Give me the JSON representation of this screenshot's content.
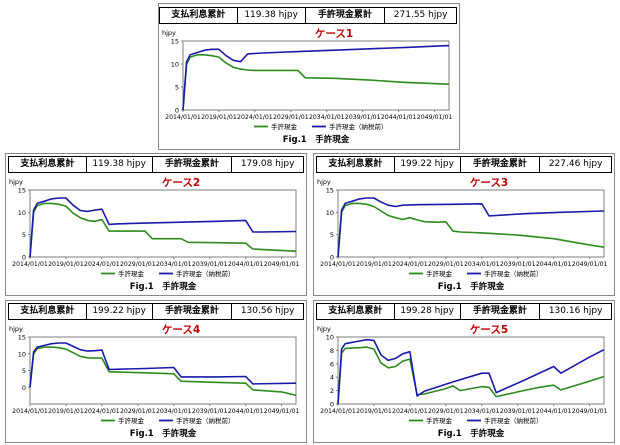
{
  "panels": [
    {
      "stats": {
        "label1": "支払利息累計",
        "value1": "119.38 hjpy",
        "label2": "手許現金累計",
        "value2": "271.55 hjpy"
      },
      "chart_data": {
        "type": "line",
        "title": "ケース1",
        "ylabel": "hjpy",
        "ylim": [
          0,
          15
        ],
        "yticks": [
          0,
          5,
          10,
          15
        ],
        "xlim": [
          2014,
          2051
        ],
        "xtick_labels": [
          "2014/01/01",
          "2019/01/01",
          "2024/01/01",
          "2029/01/01",
          "2034/01/01",
          "2039/01/01",
          "2044/01/01",
          "2049/01/01"
        ],
        "series": [
          {
            "name": "手許現金",
            "color": "#2e8b1e",
            "x": [
              2014,
              2014.5,
              2015,
              2016,
              2017,
              2018,
              2019,
              2020,
              2021,
              2022,
              2023,
              2024,
              2025,
              2026,
              2027,
              2028,
              2029,
              2030,
              2031,
              2035,
              2040,
              2045,
              2051
            ],
            "y": [
              0,
              10,
              11.5,
              12,
              12,
              11.8,
              11.5,
              10.2,
              9.3,
              8.9,
              8.7,
              8.6,
              8.6,
              8.6,
              8.6,
              8.6,
              8.6,
              8.6,
              7.0,
              6.9,
              6.5,
              6.0,
              5.6
            ]
          },
          {
            "name": "手許現金（納税前）",
            "color": "#1a1aaa",
            "x": [
              2014,
              2014.5,
              2015,
              2016,
              2017,
              2018,
              2019,
              2020,
              2021,
              2022,
              2023,
              2025,
              2030,
              2035,
              2040,
              2045,
              2051
            ],
            "y": [
              0,
              10.5,
              12,
              12.5,
              13,
              13.2,
              13.2,
              11.8,
              10.8,
              10.5,
              12.2,
              12.4,
              12.7,
              13.0,
              13.3,
              13.6,
              14.0
            ]
          }
        ],
        "legend": [
          "手許現金",
          "手許現金（納税前）"
        ],
        "caption": "Fig.1　手許現金"
      }
    },
    {
      "stats": {
        "label1": "支払利息累計",
        "value1": "119.38 hjpy",
        "label2": "手許現金累計",
        "value2": "179.08 hjpy"
      },
      "chart_data": {
        "type": "line",
        "title": "ケース2",
        "ylabel": "hjpy",
        "ylim": [
          0,
          15
        ],
        "yticks": [
          0,
          5,
          10,
          15
        ],
        "xlim": [
          2014,
          2051
        ],
        "xtick_labels": [
          "2014/01/01",
          "2019/01/01",
          "2024/01/01",
          "2029/01/01",
          "2034/01/01",
          "2039/01/01",
          "2044/01/01",
          "2049/01/01"
        ],
        "series": [
          {
            "name": "手許現金",
            "color": "#2e8b1e",
            "x": [
              2014,
              2014.5,
              2015,
              2016,
              2017,
              2018,
              2019,
              2020,
              2021,
              2022,
              2023,
              2024,
              2025,
              2026,
              2029,
              2030,
              2031,
              2034,
              2035,
              2036,
              2040,
              2044,
              2045,
              2046,
              2051
            ],
            "y": [
              0,
              10,
              11.5,
              12,
              12,
              11.8,
              11.4,
              9.8,
              8.8,
              8.2,
              8.0,
              8.4,
              5.8,
              5.8,
              5.8,
              5.8,
              4.1,
              4.1,
              4.1,
              3.3,
              3.2,
              3.1,
              1.8,
              1.7,
              1.3
            ]
          },
          {
            "name": "手許現金（納税前）",
            "color": "#1a1aaa",
            "x": [
              2014,
              2014.5,
              2015,
              2016,
              2017,
              2018,
              2019,
              2020,
              2021,
              2022,
              2023,
              2024,
              2025,
              2026,
              2030,
              2035,
              2040,
              2044,
              2045,
              2046,
              2051
            ],
            "y": [
              0,
              10.5,
              12,
              12.5,
              13,
              13.2,
              13.2,
              11.6,
              10.4,
              10.2,
              10.5,
              10.7,
              7.3,
              7.4,
              7.6,
              7.8,
              8.0,
              8.2,
              5.6,
              5.6,
              5.7
            ]
          }
        ],
        "legend": [
          "手許現金",
          "手許現金（納税前）"
        ],
        "caption": "Fig.1　手許現金"
      }
    },
    {
      "stats": {
        "label1": "支払利息累計",
        "value1": "199.22 hjpy",
        "label2": "手許現金累計",
        "value2": "227.46 hjpy"
      },
      "chart_data": {
        "type": "line",
        "title": "ケース3",
        "ylabel": "hjpy",
        "ylim": [
          0,
          15
        ],
        "yticks": [
          0,
          5,
          10,
          15
        ],
        "xlim": [
          2014,
          2051
        ],
        "xtick_labels": [
          "2014/01/01",
          "2019/01/01",
          "2024/01/01",
          "2029/01/01",
          "2034/01/01",
          "2039/01/01",
          "2044/01/01",
          "2049/01/01"
        ],
        "series": [
          {
            "name": "手許現金",
            "color": "#2e8b1e",
            "x": [
              2014,
              2014.5,
              2015,
              2016,
              2017,
              2018,
              2019,
              2020,
              2021,
              2022,
              2023,
              2024,
              2025,
              2026,
              2028,
              2029,
              2030,
              2031,
              2034,
              2035,
              2039,
              2044,
              2049,
              2051
            ],
            "y": [
              0,
              10,
              11.5,
              12,
              12,
              11.8,
              11.3,
              10.3,
              9.3,
              8.8,
              8.4,
              8.8,
              8.3,
              7.9,
              7.8,
              7.9,
              5.8,
              5.6,
              5.4,
              5.3,
              4.9,
              4.1,
              2.7,
              2.2
            ]
          },
          {
            "name": "手許現金（納税前）",
            "color": "#1a1aaa",
            "x": [
              2014,
              2014.5,
              2015,
              2016,
              2017,
              2018,
              2019,
              2020,
              2021,
              2022,
              2023,
              2025,
              2030,
              2034,
              2035,
              2036,
              2040,
              2045,
              2051
            ],
            "y": [
              0,
              10.5,
              12,
              12.5,
              13,
              13.2,
              13.2,
              12.3,
              11.6,
              11.3,
              11.6,
              11.7,
              11.8,
              11.9,
              9.2,
              9.3,
              9.7,
              10.0,
              10.3
            ]
          }
        ],
        "legend": [
          "手許現金",
          "手許現金（納税前）"
        ],
        "caption": "Fig.1　手許現金"
      }
    },
    {
      "stats": {
        "label1": "支払利息累計",
        "value1": "199.22 hjpy",
        "label2": "手許現金累計",
        "value2": "130.56 hjpy"
      },
      "chart_data": {
        "type": "line",
        "title": "ケース4",
        "ylabel": "hjpy",
        "ylim": [
          -5,
          15
        ],
        "yticks": [
          0,
          5,
          10,
          15
        ],
        "xlim": [
          2014,
          2051
        ],
        "xtick_labels": [
          "2014/01/01",
          "2019/01/01",
          "2024/01/01",
          "2029/01/01",
          "2034/01/01",
          "2039/01/01",
          "2044/01/01",
          "2049/01/01"
        ],
        "series": [
          {
            "name": "手許現金",
            "color": "#2e8b1e",
            "x": [
              2014,
              2014.5,
              2015,
              2016,
              2017,
              2018,
              2019,
              2020,
              2021,
              2022,
              2023,
              2024,
              2025,
              2030,
              2034,
              2035,
              2039,
              2044,
              2045,
              2049,
              2051
            ],
            "y": [
              0,
              10,
              11.5,
              12,
              12,
              11.8,
              11.4,
              10.3,
              9.2,
              8.8,
              8.7,
              8.7,
              4.6,
              4.3,
              4.0,
              1.8,
              1.5,
              1.2,
              -0.8,
              -1.4,
              -2.4
            ]
          },
          {
            "name": "手許現金（納税前）",
            "color": "#1a1aaa",
            "x": [
              2014,
              2014.5,
              2015,
              2016,
              2017,
              2018,
              2019,
              2020,
              2021,
              2022,
              2023,
              2024,
              2025,
              2030,
              2034,
              2035,
              2040,
              2044,
              2045,
              2051
            ],
            "y": [
              0,
              10.5,
              12,
              12.5,
              13,
              13.2,
              13.2,
              12.2,
              11.2,
              10.8,
              10.9,
              11.1,
              5.3,
              5.6,
              5.9,
              3.1,
              3.1,
              3.2,
              1.0,
              1.2
            ]
          }
        ],
        "legend": [
          "手許現金",
          "手許現金（納税前）"
        ],
        "caption": "Fig.1　手許現金"
      }
    },
    {
      "stats": {
        "label1": "支払利息累計",
        "value1": "199.28 hjpy",
        "label2": "手許現金累計",
        "value2": "130.16 hjpy"
      },
      "chart_data": {
        "type": "line",
        "title": "ケース5",
        "ylabel": "hjpy",
        "ylim": [
          0,
          10
        ],
        "yticks": [
          0,
          2,
          4,
          6,
          8,
          10
        ],
        "xlim": [
          2014,
          2051
        ],
        "xtick_labels": [
          "2014/01/01",
          "2019/01/01",
          "2024/01/01",
          "2029/01/01",
          "2034/01/01",
          "2039/01/01",
          "2044/01/01",
          "2049/01/01"
        ],
        "series": [
          {
            "name": "手許現金",
            "color": "#2e8b1e",
            "x": [
              2014,
              2014.5,
              2015,
              2017,
              2018,
              2019,
              2020,
              2021,
              2022,
              2023,
              2024,
              2025,
              2026,
              2029,
              2030,
              2031,
              2034,
              2035,
              2036,
              2039,
              2042,
              2044,
              2045,
              2049,
              2051
            ],
            "y": [
              0,
              7.6,
              8.3,
              8.4,
              8.5,
              8.2,
              6.1,
              5.4,
              5.6,
              6.4,
              6.7,
              1.4,
              1.5,
              2.3,
              2.7,
              2.0,
              2.6,
              2.5,
              1.1,
              1.8,
              2.5,
              2.8,
              2.1,
              3.4,
              4.1
            ]
          },
          {
            "name": "手許現金（納税前）",
            "color": "#1a1aaa",
            "x": [
              2014,
              2014.5,
              2015,
              2017,
              2018,
              2019,
              2020,
              2021,
              2022,
              2023,
              2024,
              2025,
              2026,
              2030,
              2034,
              2035,
              2036,
              2040,
              2044,
              2045,
              2049,
              2051
            ],
            "y": [
              0,
              8.2,
              9.0,
              9.4,
              9.6,
              9.5,
              7.3,
              6.5,
              6.8,
              7.5,
              7.8,
              1.2,
              1.9,
              3.3,
              4.6,
              4.6,
              1.7,
              3.6,
              5.6,
              4.6,
              7.0,
              8.1
            ]
          }
        ],
        "legend": [
          "手許現金",
          "手許現金（納税前）"
        ],
        "caption": "Fig.1　手許現金"
      }
    }
  ]
}
